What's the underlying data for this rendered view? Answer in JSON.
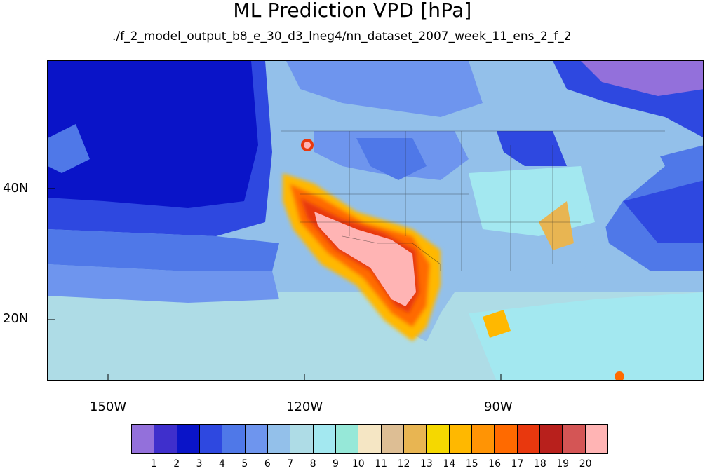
{
  "title": "ML Prediction VPD [hPa]",
  "subtitle": "./f_2_model_output_b8_e_30_d3_lneg4/nn_dataset_2007_week_11_ens_2_f_2",
  "map": {
    "projection": "cylindrical-equidistant",
    "lon_ticks": [
      "150W",
      "120W",
      "90W"
    ],
    "lat_ticks": [
      "40N",
      "20N"
    ],
    "lon_range": [
      -159.3,
      -59
    ],
    "lat_range": [
      10,
      59
    ],
    "features": [
      "coastlines",
      "US state boundaries",
      "national borders"
    ]
  },
  "colorbar": {
    "labels": [
      "1",
      "2",
      "3",
      "4",
      "5",
      "6",
      "7",
      "8",
      "9",
      "10",
      "11",
      "12",
      "13",
      "14",
      "15",
      "16",
      "17",
      "18",
      "19",
      "20"
    ],
    "colors": [
      "#9370DB",
      "#3F2FCC",
      "#0A14C8",
      "#2E48E0",
      "#4F78E8",
      "#6E95EE",
      "#93C0EA",
      "#AEDCE6",
      "#A3E8F0",
      "#96E8D8",
      "#F5E6C4",
      "#DDBE94",
      "#E8B552",
      "#F5D800",
      "#FFB800",
      "#FF9405",
      "#FF6A00",
      "#E8380E",
      "#B8201C",
      "#D45555",
      "#FFB4B4"
    ]
  }
}
